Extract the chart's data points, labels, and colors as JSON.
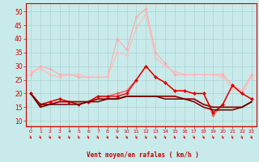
{
  "x": [
    0,
    1,
    2,
    3,
    4,
    5,
    6,
    7,
    8,
    9,
    10,
    11,
    12,
    13,
    14,
    15,
    16,
    17,
    18,
    19,
    20,
    21,
    22,
    23
  ],
  "lines": [
    {
      "y": [
        27,
        30,
        29,
        27,
        27,
        26,
        26,
        26,
        26,
        40,
        36,
        48,
        51,
        35,
        31,
        27,
        27,
        27,
        27,
        27,
        27,
        23,
        21,
        27
      ],
      "color": "#ffaaaa",
      "lw": 0.8,
      "marker": "D",
      "ms": 1.8,
      "zorder": 2,
      "alpha": 1.0
    },
    {
      "y": [
        28,
        29,
        27,
        26,
        27,
        27,
        26,
        26,
        26,
        35,
        34,
        44,
        49,
        33,
        30,
        28,
        27,
        27,
        27,
        27,
        26,
        22,
        20,
        26
      ],
      "color": "#ffbbbb",
      "lw": 0.8,
      "marker": "D",
      "ms": 1.8,
      "zorder": 2,
      "alpha": 1.0
    },
    {
      "y": [
        20,
        16,
        17,
        18,
        17,
        16,
        17,
        19,
        19,
        20,
        21,
        25,
        30,
        26,
        24,
        21,
        21,
        20,
        20,
        12,
        16,
        23,
        20,
        18
      ],
      "color": "#ff5555",
      "lw": 1.0,
      "marker": "D",
      "ms": 2.0,
      "zorder": 4,
      "alpha": 1.0
    },
    {
      "y": [
        20,
        16,
        17,
        18,
        17,
        16,
        17,
        19,
        19,
        19,
        20,
        25,
        30,
        26,
        24,
        21,
        21,
        20,
        20,
        13,
        16,
        23,
        20,
        18
      ],
      "color": "#dd0000",
      "lw": 1.0,
      "marker": "D",
      "ms": 2.0,
      "zorder": 4,
      "alpha": 1.0
    },
    {
      "y": [
        20,
        16,
        16,
        17,
        17,
        17,
        17,
        18,
        18,
        18,
        19,
        19,
        19,
        19,
        19,
        19,
        18,
        18,
        16,
        15,
        15,
        15,
        15,
        17
      ],
      "color": "#990000",
      "lw": 1.3,
      "marker": null,
      "ms": 0,
      "zorder": 5,
      "alpha": 1.0
    },
    {
      "y": [
        20,
        15,
        16,
        16,
        16,
        16,
        17,
        17,
        18,
        18,
        19,
        19,
        19,
        19,
        18,
        18,
        18,
        17,
        15,
        14,
        14,
        14,
        15,
        17
      ],
      "color": "#660000",
      "lw": 1.1,
      "marker": null,
      "ms": 0,
      "zorder": 5,
      "alpha": 1.0
    }
  ],
  "ylabel_ticks": [
    10,
    15,
    20,
    25,
    30,
    35,
    40,
    45,
    50
  ],
  "ylim": [
    8,
    53
  ],
  "xlim": [
    -0.5,
    23.5
  ],
  "xlabel": "Vent moyen/en rafales ( km/h )",
  "background_color": "#c8eaea",
  "grid_color": "#aad4d4",
  "tick_color": "#dd0000",
  "label_color": "#cc0000",
  "axis_line_color": "#cc0000"
}
